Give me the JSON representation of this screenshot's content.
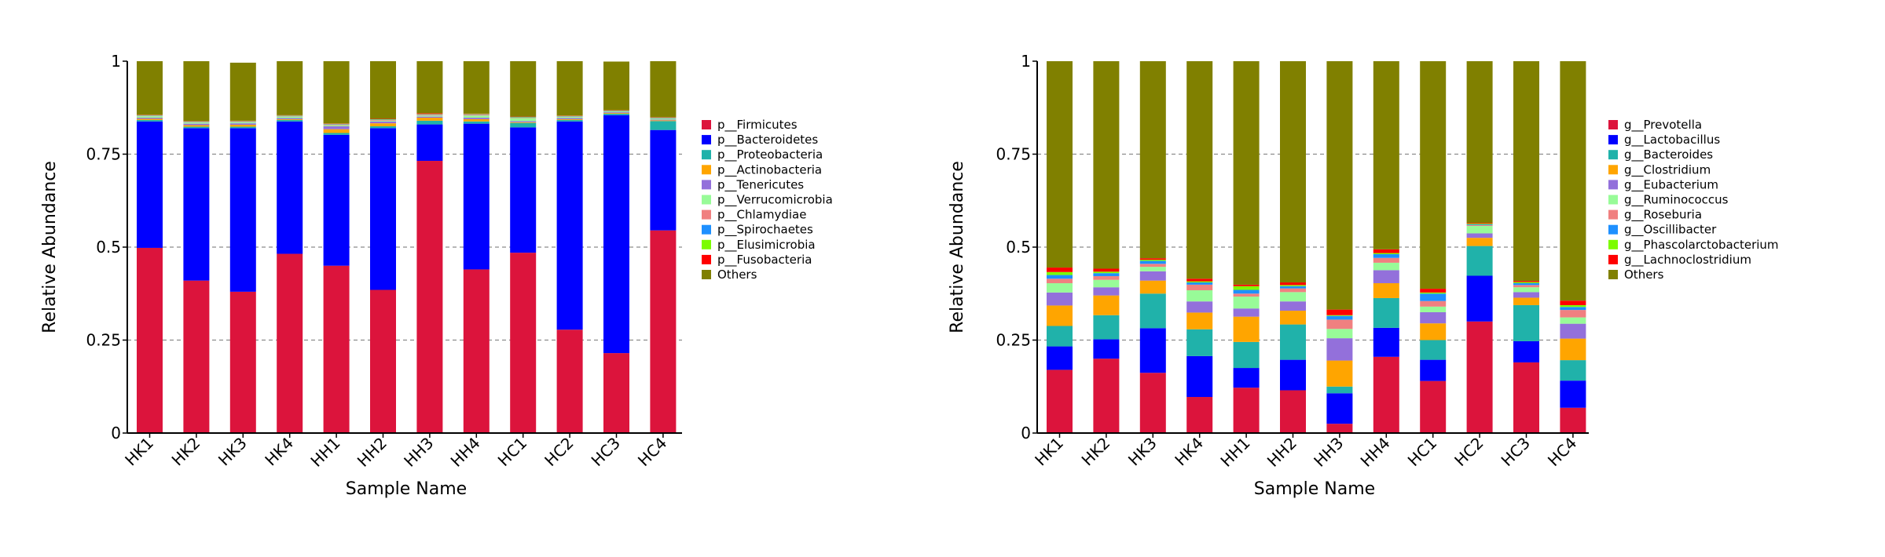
{
  "chart_data": [
    {
      "type": "bar",
      "stacked": true,
      "xlabel": "Sample Name",
      "ylabel": "Relative Abundance",
      "ylim": [
        0,
        1
      ],
      "yticks": [
        "0",
        "0.25",
        "0.5",
        "0.75",
        "1"
      ],
      "grid": "horizontal dashed",
      "legend_position": "right",
      "categories": [
        "HK1",
        "HK2",
        "HK3",
        "HK4",
        "HH1",
        "HH2",
        "HH3",
        "HH4",
        "HC1",
        "HC2",
        "HC3",
        "HC4"
      ],
      "series": [
        {
          "name": "p__Firmicutes",
          "color": "#dc143c",
          "values": [
            0.498,
            0.41,
            0.38,
            0.482,
            0.45,
            0.385,
            0.732,
            0.44,
            0.485,
            0.278,
            0.215,
            0.545
          ]
        },
        {
          "name": "p__Bacteroidetes",
          "color": "#0000ff",
          "values": [
            0.34,
            0.41,
            0.44,
            0.356,
            0.352,
            0.435,
            0.098,
            0.392,
            0.337,
            0.56,
            0.64,
            0.27
          ]
        },
        {
          "name": "p__Proteobacteria",
          "color": "#20b2aa",
          "values": [
            0.004,
            0.004,
            0.004,
            0.004,
            0.005,
            0.005,
            0.01,
            0.006,
            0.012,
            0.004,
            0.004,
            0.024
          ]
        },
        {
          "name": "p__Actinobacteria",
          "color": "#ffa500",
          "values": [
            0.003,
            0.004,
            0.005,
            0.002,
            0.01,
            0.008,
            0.008,
            0.006,
            0.002,
            0.002,
            0.002,
            0.002
          ]
        },
        {
          "name": "p__Tenericutes",
          "color": "#9370db",
          "values": [
            0.003,
            0.004,
            0.004,
            0.003,
            0.008,
            0.005,
            0.003,
            0.004,
            0.003,
            0.003,
            0.002,
            0.002
          ]
        },
        {
          "name": "p__Verrucomicrobia",
          "color": "#98fb98",
          "values": [
            0.004,
            0.003,
            0.003,
            0.004,
            0.003,
            0.002,
            0.003,
            0.006,
            0.008,
            0.003,
            0.002,
            0.003
          ]
        },
        {
          "name": "p__Chlamydiae",
          "color": "#f08080",
          "values": [
            0.001,
            0.001,
            0.001,
            0.001,
            0.002,
            0.002,
            0.002,
            0.002,
            0.001,
            0.001,
            0.001,
            0.001
          ]
        },
        {
          "name": "p__Spirochaetes",
          "color": "#1e90ff",
          "values": [
            0.001,
            0.001,
            0.001,
            0.001,
            0.001,
            0.001,
            0.001,
            0.001,
            0.001,
            0.001,
            0.001,
            0.001
          ]
        },
        {
          "name": "p__Elusimicrobia",
          "color": "#7cfc00",
          "values": [
            0.001,
            0.001,
            0.001,
            0.001,
            0.001,
            0.001,
            0.001,
            0.001,
            0.001,
            0.001,
            0.001,
            0.001
          ]
        },
        {
          "name": "p__Fusobacteria",
          "color": "#ff0000",
          "values": [
            0.001,
            0.001,
            0.001,
            0.001,
            0.001,
            0.001,
            0.002,
            0.001,
            0.001,
            0.001,
            0.001,
            0.001
          ]
        },
        {
          "name": "Others",
          "color": "#808000",
          "values": [
            0.144,
            0.161,
            0.156,
            0.145,
            0.167,
            0.155,
            0.14,
            0.141,
            0.149,
            0.146,
            0.13,
            0.15
          ]
        }
      ]
    },
    {
      "type": "bar",
      "stacked": true,
      "xlabel": "Sample Name",
      "ylabel": "Relative Abundance",
      "ylim": [
        0,
        1
      ],
      "yticks": [
        "0",
        "0.25",
        "0.5",
        "0.75",
        "1"
      ],
      "grid": "horizontal dashed",
      "legend_position": "right",
      "categories": [
        "HK1",
        "HK2",
        "HK3",
        "HK4",
        "HH1",
        "HH2",
        "HH3",
        "HH4",
        "HC1",
        "HC2",
        "HC3",
        "HC4"
      ],
      "series": [
        {
          "name": "g__Prevotella",
          "color": "#dc143c",
          "values": [
            0.17,
            0.2,
            0.162,
            0.097,
            0.122,
            0.115,
            0.025,
            0.205,
            0.14,
            0.3,
            0.19,
            0.068
          ]
        },
        {
          "name": "g__Lactobacillus",
          "color": "#0000ff",
          "values": [
            0.063,
            0.052,
            0.12,
            0.11,
            0.053,
            0.082,
            0.082,
            0.078,
            0.057,
            0.123,
            0.057,
            0.073
          ]
        },
        {
          "name": "g__Bacteroides",
          "color": "#20b2aa",
          "values": [
            0.055,
            0.065,
            0.093,
            0.072,
            0.07,
            0.095,
            0.018,
            0.08,
            0.053,
            0.08,
            0.097,
            0.055
          ]
        },
        {
          "name": "g__Clostridium",
          "color": "#ffa500",
          "values": [
            0.055,
            0.053,
            0.035,
            0.045,
            0.068,
            0.037,
            0.07,
            0.04,
            0.045,
            0.022,
            0.02,
            0.058
          ]
        },
        {
          "name": "g__Eubacterium",
          "color": "#9370db",
          "values": [
            0.035,
            0.022,
            0.025,
            0.03,
            0.022,
            0.025,
            0.06,
            0.035,
            0.03,
            0.012,
            0.015,
            0.04
          ]
        },
        {
          "name": "g__Ruminococcus",
          "color": "#98fb98",
          "values": [
            0.025,
            0.02,
            0.012,
            0.03,
            0.032,
            0.025,
            0.025,
            0.02,
            0.015,
            0.02,
            0.013,
            0.017
          ]
        },
        {
          "name": "g__Roseburia",
          "color": "#f08080",
          "values": [
            0.012,
            0.01,
            0.008,
            0.015,
            0.008,
            0.01,
            0.025,
            0.013,
            0.015,
            0.002,
            0.006,
            0.02
          ]
        },
        {
          "name": "g__Oscillibacter",
          "color": "#1e90ff",
          "values": [
            0.01,
            0.008,
            0.008,
            0.006,
            0.01,
            0.006,
            0.01,
            0.01,
            0.02,
            0.002,
            0.005,
            0.008
          ]
        },
        {
          "name": "g__Phascolarctobacterium",
          "color": "#7cfc00",
          "values": [
            0.008,
            0.004,
            0.003,
            0.003,
            0.01,
            0.003,
            0.002,
            0.003,
            0.003,
            0.002,
            0.003,
            0.005
          ]
        },
        {
          "name": "g__Lachnoclostridium",
          "color": "#ff0000",
          "values": [
            0.012,
            0.008,
            0.004,
            0.007,
            0.004,
            0.007,
            0.015,
            0.01,
            0.01,
            0.002,
            0.003,
            0.012
          ]
        },
        {
          "name": "Others",
          "color": "#808000",
          "values": [
            0.555,
            0.558,
            0.53,
            0.585,
            0.601,
            0.595,
            0.668,
            0.506,
            0.612,
            0.435,
            0.591,
            0.644
          ]
        }
      ]
    }
  ]
}
